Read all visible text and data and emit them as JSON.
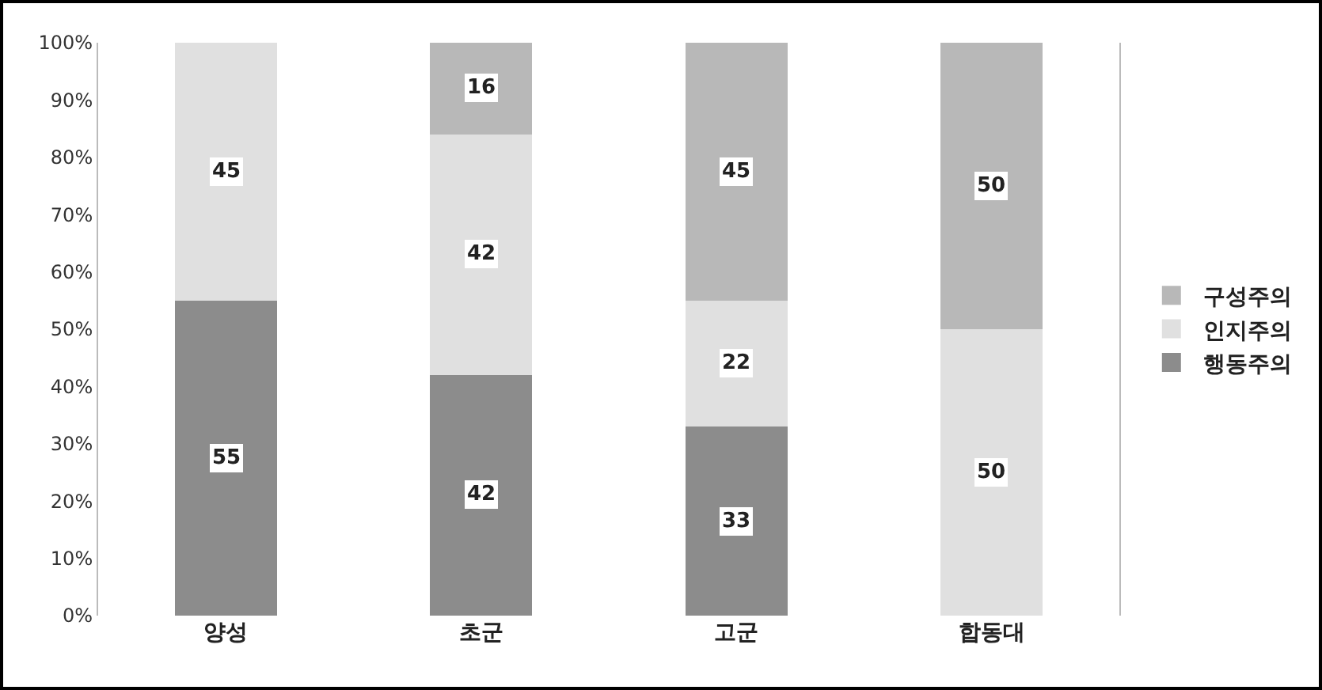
{
  "chart_data": {
    "type": "bar",
    "stacked": true,
    "categories": [
      "양성",
      "초군",
      "고군",
      "합동대"
    ],
    "series": [
      {
        "name": "행동주의",
        "color": "#8c8c8c",
        "values": [
          55,
          42,
          33,
          0
        ],
        "value_labels": [
          "55",
          "42",
          "33",
          null
        ]
      },
      {
        "name": "인지주의",
        "color": "#e0e0e0",
        "values": [
          45,
          42,
          22,
          50
        ],
        "value_labels": [
          "45",
          "42",
          "22",
          "50"
        ]
      },
      {
        "name": "구성주의",
        "color": "#b8b8b8",
        "values": [
          0,
          16,
          45,
          50
        ],
        "value_labels": [
          null,
          "16",
          "45",
          "50"
        ]
      }
    ],
    "ylim": [
      0,
      100
    ],
    "yticks": [
      {
        "value": 0,
        "label": "0%"
      },
      {
        "value": 10,
        "label": "10%"
      },
      {
        "value": 20,
        "label": "20%"
      },
      {
        "value": 30,
        "label": "30%"
      },
      {
        "value": 40,
        "label": "40%"
      },
      {
        "value": 50,
        "label": "50%"
      },
      {
        "value": 60,
        "label": "60%"
      },
      {
        "value": 70,
        "label": "70%"
      },
      {
        "value": 80,
        "label": "80%"
      },
      {
        "value": 90,
        "label": "90%"
      },
      {
        "value": 100,
        "label": "100%"
      }
    ],
    "grid": false,
    "legend": "right"
  }
}
